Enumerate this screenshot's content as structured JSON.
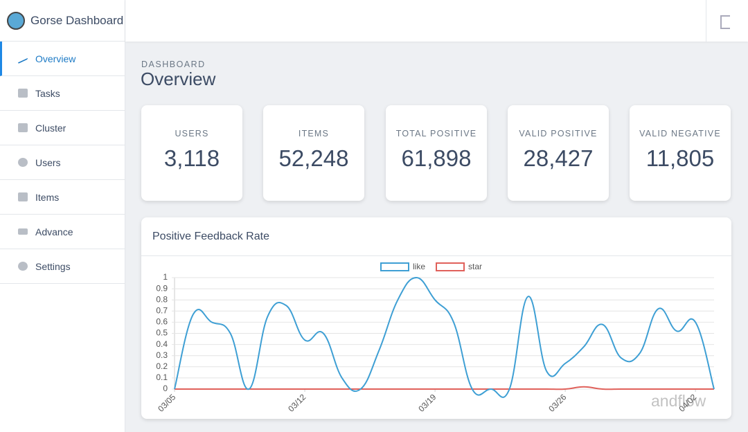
{
  "brand": "Gorse Dashboard",
  "nav": [
    "Overview",
    "Tasks",
    "Cluster",
    "Users",
    "Items",
    "Advance",
    "Settings"
  ],
  "breadcrumb": "DASHBOARD",
  "page_title": "Overview",
  "stats": [
    {
      "label": "USERS",
      "value": "3,118"
    },
    {
      "label": "ITEMS",
      "value": "52,248"
    },
    {
      "label": "TOTAL POSITIVE",
      "value": "61,898"
    },
    {
      "label": "VALID POSITIVE",
      "value": "28,427"
    },
    {
      "label": "VALID NEGATIVE",
      "value": "11,805"
    }
  ],
  "watermark": "andflow",
  "chart_data": {
    "type": "line",
    "title": "Positive Feedback Rate",
    "categories": [
      "03/05",
      null,
      null,
      null,
      null,
      null,
      null,
      "03/12",
      null,
      null,
      null,
      null,
      null,
      null,
      "03/19",
      null,
      null,
      null,
      null,
      null,
      null,
      "03/26",
      null,
      null,
      null,
      null,
      null,
      null,
      "04/02",
      null
    ],
    "series": [
      {
        "name": "like",
        "color": "#3e9fd4",
        "values": [
          0,
          0.67,
          0.6,
          0.5,
          0,
          0.65,
          0.75,
          0.44,
          0.5,
          0.1,
          0,
          0.35,
          0.8,
          1.0,
          0.8,
          0.6,
          0,
          0,
          0,
          0.83,
          0.16,
          0.23,
          0.38,
          0.58,
          0.28,
          0.32,
          0.72,
          0.52,
          0.6,
          0
        ]
      },
      {
        "name": "star",
        "color": "#e0605a",
        "values": [
          0,
          0,
          0,
          0,
          0,
          0,
          0,
          0,
          0,
          0,
          0,
          0,
          0,
          0,
          0,
          0,
          0,
          0,
          0,
          0,
          0,
          0,
          0.02,
          0,
          0,
          0,
          0,
          0,
          0,
          0
        ]
      }
    ],
    "ylim": [
      0,
      1
    ],
    "yticks": [
      0,
      0.1,
      0.2,
      0.3,
      0.4,
      0.5,
      0.6,
      0.7,
      0.8,
      0.9,
      1
    ],
    "grid": true,
    "legend": "top"
  }
}
